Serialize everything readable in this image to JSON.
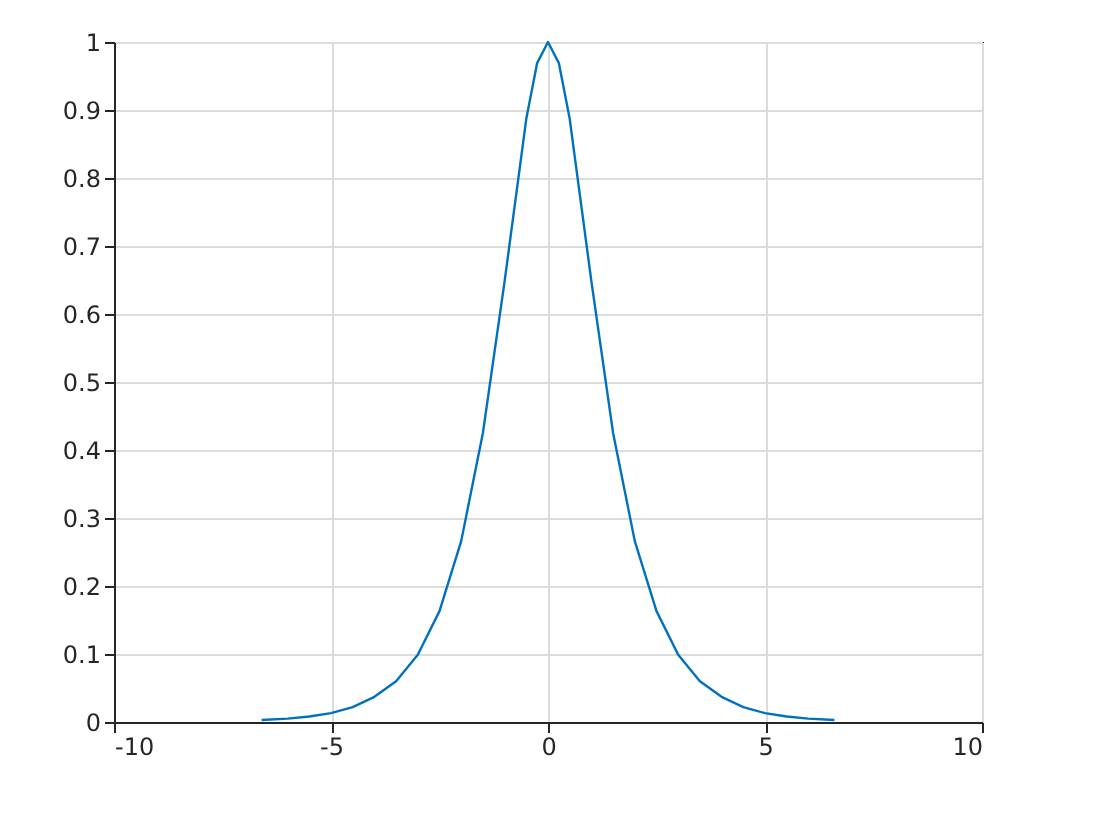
{
  "chart_data": {
    "type": "line",
    "xlim": [
      -10,
      10
    ],
    "xticks": [
      -10,
      -5,
      0,
      5,
      10
    ],
    "ylim": [
      0,
      1
    ],
    "yticks": [
      0,
      0.1,
      0.2,
      0.3,
      0.4,
      0.5,
      0.6,
      0.7,
      0.8,
      0.9,
      1
    ],
    "grid": true,
    "x": [
      -6.6,
      -6,
      -5.5,
      -5,
      -4.5,
      -4,
      -3.5,
      -3,
      -2.5,
      -2,
      -1.5,
      -1,
      -0.5,
      -0.25,
      0,
      0.25,
      0.5,
      1,
      1.5,
      2,
      2.5,
      3,
      3.5,
      4,
      4.5,
      5,
      5.5,
      6,
      6.6
    ],
    "series": [
      {
        "color": "#0072bd",
        "values": [
          0.003,
          0.005,
          0.008,
          0.013,
          0.022,
          0.037,
          0.06,
          0.099,
          0.163,
          0.266,
          0.425,
          0.648,
          0.887,
          0.969,
          1,
          0.969,
          0.887,
          0.648,
          0.425,
          0.266,
          0.163,
          0.099,
          0.06,
          0.037,
          0.022,
          0.013,
          0.008,
          0.005,
          0.003
        ]
      }
    ]
  }
}
